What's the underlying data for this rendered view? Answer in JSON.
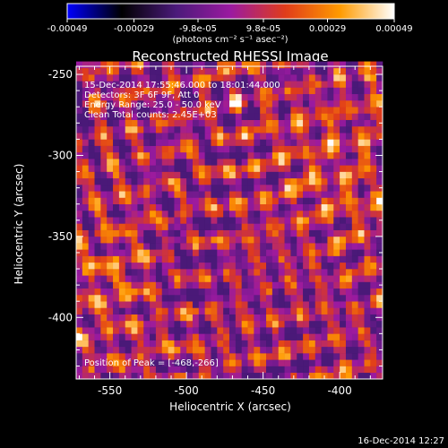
{
  "colorbar": {
    "ticks": [
      "-0.00049",
      "-0.00029",
      "-9.8e-05",
      "9.8e-05",
      "0.00029",
      "0.00049"
    ],
    "tick_values": [
      -0.00049,
      -0.00029,
      -9.8e-05,
      9.8e-05,
      0.00029,
      0.00049
    ],
    "range": [
      -0.00049,
      0.00049
    ],
    "units_label": "(photons cm⁻² s⁻¹ asec⁻²)",
    "colors": [
      "#0000ff",
      "#000000",
      "#4b1a7a",
      "#9b1aa0",
      "#e03c1a",
      "#ff9a00",
      "#ffffff"
    ]
  },
  "chart_data": {
    "type": "heatmap",
    "title": "Reconstructed RHESSI Image",
    "xlabel": "Heliocentric X (arcsec)",
    "ylabel": "Heliocentric Y (arcsec)",
    "xlim": [
      -572,
      -372
    ],
    "ylim": [
      -438,
      -245
    ],
    "xticks": [
      "-550",
      "-500",
      "-450",
      "-400"
    ],
    "xtick_values": [
      -550,
      -500,
      -450,
      -400
    ],
    "yticks": [
      "-250",
      "-300",
      "-350",
      "-400"
    ],
    "ytick_values": [
      -250,
      -300,
      -350,
      -400
    ],
    "grid": false,
    "annotations": [
      "15-Dec-2014 17:55:46.000 to 18:01:44.000",
      "Detectors: 3F 6F 9F, Att 0",
      "Energy Range: 25.0 - 50.0 keV",
      "Clean    Total counts: 2.45E+03"
    ],
    "peak_label": "Position of Peak = [-468,-266]",
    "peak": [
      -468,
      -266
    ],
    "cell_size_arcsec": 4
  },
  "footer": {
    "timestamp": "16-Dec-2014 12:27"
  }
}
